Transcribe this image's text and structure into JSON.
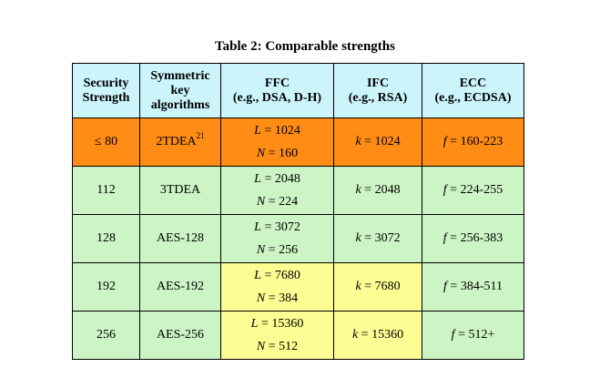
{
  "caption": "Table 2: Comparable strengths",
  "headers": {
    "security_strength": [
      "Security",
      "Strength"
    ],
    "symmetric": [
      "Symmetric",
      "key",
      "algorithms"
    ],
    "ffc": [
      "FFC",
      "(e.g., DSA, D-H)"
    ],
    "ifc": [
      "IFC",
      "(e.g., RSA)"
    ],
    "ecc": [
      "ECC",
      "(e.g., ECDSA)"
    ]
  },
  "rows": [
    {
      "strength": "≤ 80",
      "symmetric": "2TDEA",
      "symmetric_footnote": "21",
      "L": "1024",
      "N": "160",
      "k": "1024",
      "f": "160-223"
    },
    {
      "strength": "112",
      "symmetric": "3TDEA",
      "symmetric_footnote": "",
      "L": "2048",
      "N": "224",
      "k": "2048",
      "f": "224-255"
    },
    {
      "strength": "128",
      "symmetric": "AES-128",
      "symmetric_footnote": "",
      "L": "3072",
      "N": "256",
      "k": "3072",
      "f": "256-383"
    },
    {
      "strength": "192",
      "symmetric": "AES-192",
      "symmetric_footnote": "",
      "L": "7680",
      "N": "384",
      "k": "7680",
      "f": "384-511"
    },
    {
      "strength": "256",
      "symmetric": "AES-256",
      "symmetric_footnote": "",
      "L": "15360",
      "N": "512",
      "k": "15360",
      "f": "512+"
    }
  ],
  "colors": {
    "header_bg": "#ccf4fb",
    "orange": "#ff8c14",
    "green": "#ccf4c4",
    "yellow": "#fdfd93"
  }
}
